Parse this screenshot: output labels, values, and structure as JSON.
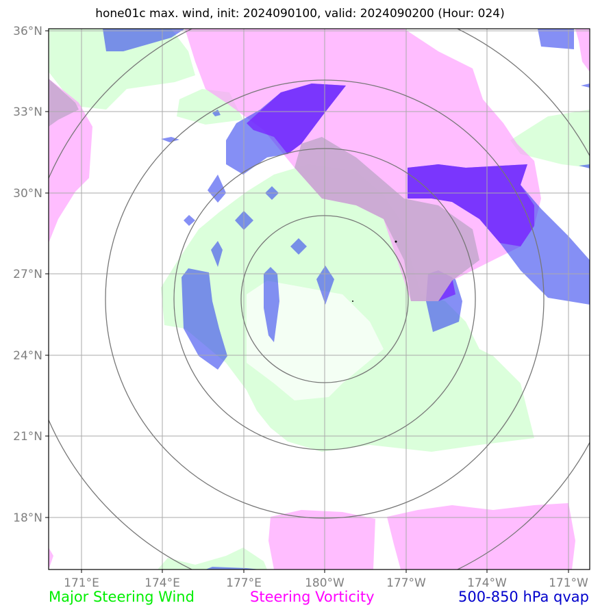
{
  "title": "hone01c max. wind, init: 2024090100, valid: 2024090200 (Hour: 024)",
  "colors": {
    "green": "#ccffcc",
    "magenta": "#ff99ff",
    "blue": "#3344ee",
    "violet": "#7722ff",
    "grid": "#aaaaaa",
    "ring": "#777777",
    "tick_label": "#7f7f7f",
    "legend_green": "#00ee00",
    "legend_magenta": "#ff00ff",
    "legend_blue": "#0000cc"
  },
  "y_ticks": [
    "36°N",
    "33°N",
    "30°N",
    "27°N",
    "24°N",
    "21°N",
    "18°N"
  ],
  "x_ticks": [
    "171°E",
    "174°E",
    "177°E",
    "180°W",
    "177°W",
    "174°W",
    "171°W"
  ],
  "legend": {
    "green": "Major Steering Wind",
    "magenta": "Steering Vorticity",
    "blue": "500-850 hPa qvap"
  }
}
